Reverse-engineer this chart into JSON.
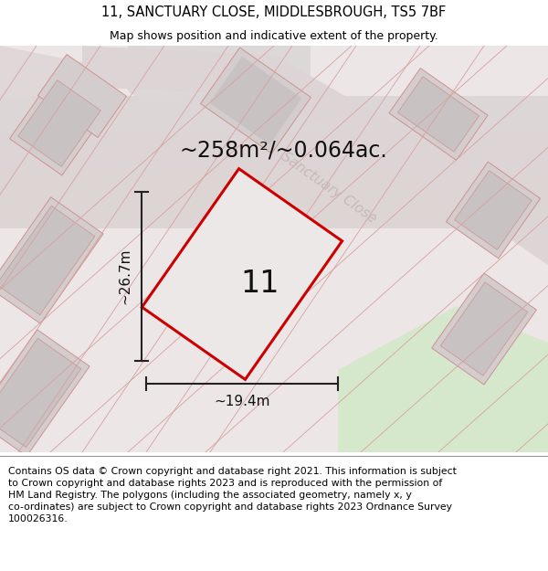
{
  "title": "11, SANCTUARY CLOSE, MIDDLESBROUGH, TS5 7BF",
  "subtitle": "Map shows position and indicative extent of the property.",
  "footer": "Contains OS data © Crown copyright and database right 2021. This information is subject\nto Crown copyright and database rights 2023 and is reproduced with the permission of\nHM Land Registry. The polygons (including the associated geometry, namely x, y\nco-ordinates) are subject to Crown copyright and database rights 2023 Ordnance Survey\n100026316.",
  "area_label": "~258m²/~0.064ac.",
  "number_label": "11",
  "width_label": "~19.4m",
  "height_label": "~26.7m",
  "street_label": "Sanctuary Close",
  "map_bg": "#f0eaea",
  "road_fill": "#e2d8d8",
  "block_fill": "#d8d2d2",
  "block_inner": "#cec8c8",
  "plot_outline": "#cc0000",
  "plot_fill": "#ede8e8",
  "dim_color": "#222222",
  "street_color": "#c8b8b8",
  "green_fill": "#d8e8d0",
  "title_fontsize": 10.5,
  "subtitle_fontsize": 9,
  "footer_fontsize": 7.8,
  "area_fontsize": 17,
  "number_fontsize": 24,
  "dim_fontsize": 11,
  "street_fontsize": 11
}
